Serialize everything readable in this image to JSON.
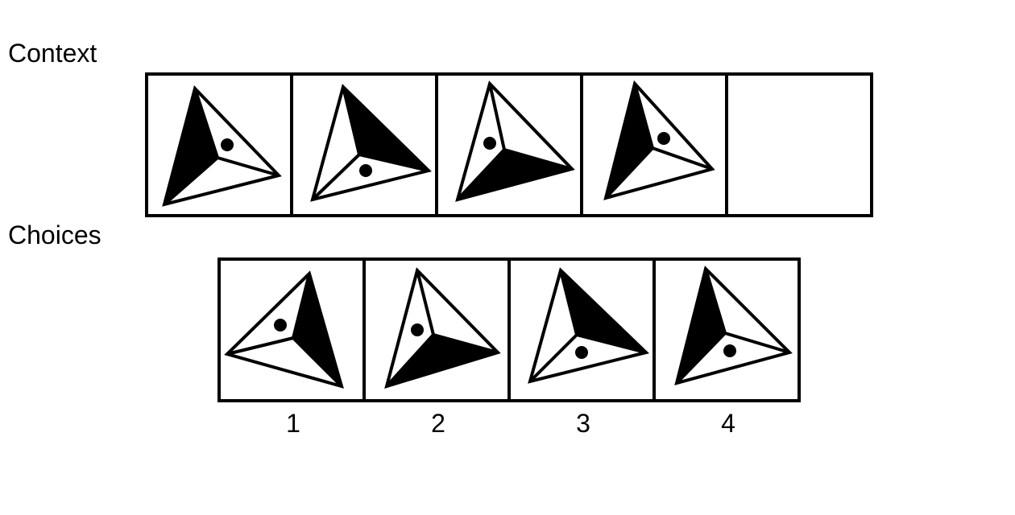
{
  "labels": {
    "context": "Context",
    "choices": "Choices"
  },
  "colors": {
    "ink": "#000000",
    "paper": "#ffffff"
  },
  "context_cells": [
    {
      "figure": "triangle-pointing-right",
      "shaded": "left-face",
      "dot": "upper-face"
    },
    {
      "figure": "triangle-pointing-right",
      "shaded": "upper-face",
      "dot": "lower-face"
    },
    {
      "figure": "triangle-pointing-right",
      "shaded": "lower-face",
      "dot": "left-face"
    },
    {
      "figure": "triangle-pointing-right",
      "shaded": "left-face",
      "dot": "upper-face"
    },
    {
      "figure": "empty"
    }
  ],
  "choices": [
    {
      "number": "1",
      "figure": "triangle-pointing-left",
      "shaded": "right-face",
      "dot": "upper-face"
    },
    {
      "number": "2",
      "figure": "triangle-pointing-right",
      "shaded": "lower-face",
      "dot": "left-face"
    },
    {
      "number": "3",
      "figure": "triangle-pointing-right",
      "shaded": "upper-face",
      "dot": "lower-face"
    },
    {
      "number": "4",
      "figure": "triangle-pointing-right",
      "shaded": "left-face",
      "dot": "lower-face"
    }
  ]
}
